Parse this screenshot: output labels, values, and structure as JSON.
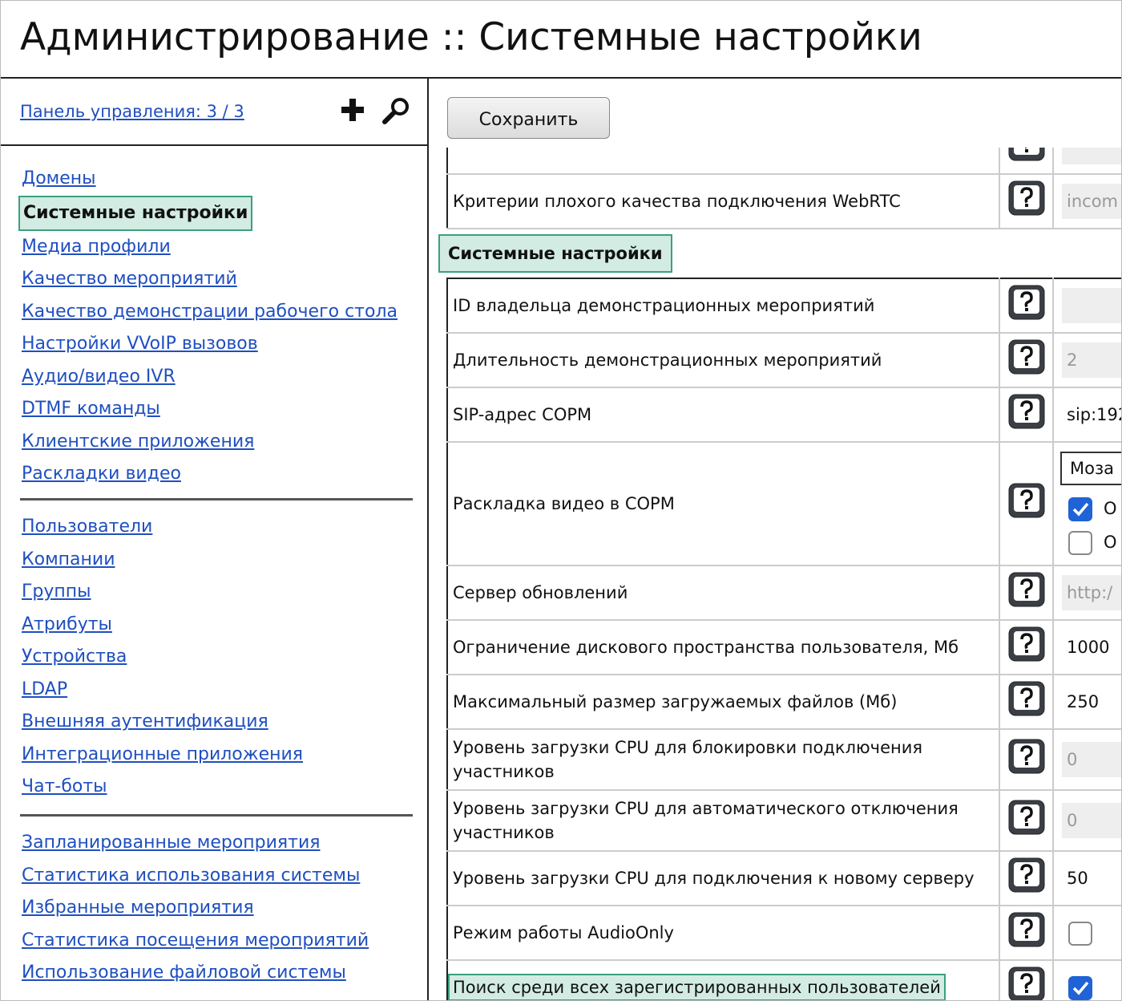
{
  "header": {
    "title": "Администрирование :: Системные настройки"
  },
  "sidebar": {
    "panel_link": "Панель управления: 3 / 3",
    "groups": [
      [
        "Домены",
        "Системные настройки",
        "Медиа профили",
        "Качество мероприятий",
        "Качество демонстрации рабочего стола",
        "Настройки VVoIP вызовов",
        "Аудио/видео IVR",
        "DTMF команды",
        "Клиентские приложения",
        "Раскладки видео"
      ],
      [
        "Пользователи",
        "Компании",
        "Группы",
        "Атрибуты",
        "Устройства",
        "LDAP",
        "Внешняя аутентификация",
        "Интеграционные приложения",
        "Чат-боты"
      ],
      [
        "Запланированные мероприятия",
        "Статистика использования системы",
        "Избранные мероприятия",
        "Статистика посещения мероприятий",
        "Использование файловой системы"
      ]
    ]
  },
  "main": {
    "save_button": "Сохранить",
    "top_rows": [
      {
        "label": "Критерии плохого качества подключения WebRTC",
        "value": "incom",
        "disabled": true
      }
    ],
    "section_title": "Системные настройки",
    "rows": [
      {
        "label": "ID владельца демонстрационных мероприятий",
        "value": "",
        "disabled": true
      },
      {
        "label": "Длительность демонстрационных мероприятий",
        "value": "2",
        "disabled": true
      },
      {
        "label": "SIP-адрес СОРМ",
        "value": "sip:192",
        "disabled": false
      },
      {
        "label": "Раскладка видео в СОРМ",
        "select": "Моза",
        "options": [
          {
            "checked": true,
            "label": "О"
          },
          {
            "checked": false,
            "label": "О"
          }
        ]
      },
      {
        "label": "Сервер обновлений",
        "value": "http:/",
        "disabled": true
      },
      {
        "label": "Ограничение дискового пространства пользователя, Мб",
        "value": "1000",
        "disabled": false
      },
      {
        "label": "Максимальный размер загружаемых файлов (Мб)",
        "value": "250",
        "disabled": false
      },
      {
        "label": "Уровень загрузки CPU для блокировки подключения участников",
        "value": "0",
        "disabled": true
      },
      {
        "label": "Уровень загрузки CPU для автоматического отключения участников",
        "value": "0",
        "disabled": true
      },
      {
        "label": "Уровень загрузки CPU для подключения к новому серверу",
        "value": "50",
        "disabled": false
      },
      {
        "label": "Режим работы AudioOnly",
        "checked": false
      },
      {
        "label": "Поиск среди всех зарегистрированных пользователей",
        "checked": true,
        "highlight": true
      }
    ]
  }
}
